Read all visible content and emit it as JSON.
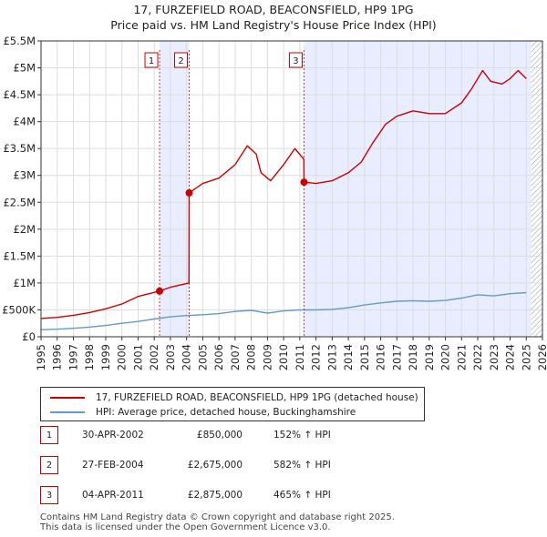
{
  "title_line1": "17, FURZEFIELD ROAD, BEACONSFIELD, HP9 1PG",
  "title_line2": "Price paid vs. HM Land Registry's House Price Index (HPI)",
  "chart_data": {
    "type": "line",
    "xlim": [
      1995,
      2026
    ],
    "ylim": [
      0,
      5500000
    ],
    "x_ticks": [
      "1995",
      "1996",
      "1997",
      "1998",
      "1999",
      "2000",
      "2001",
      "2002",
      "2003",
      "2004",
      "2005",
      "2006",
      "2007",
      "2008",
      "2009",
      "2010",
      "2011",
      "2012",
      "2013",
      "2014",
      "2015",
      "2016",
      "2017",
      "2018",
      "2019",
      "2020",
      "2021",
      "2022",
      "2023",
      "2024",
      "2025",
      "2026"
    ],
    "y_ticks": [
      {
        "value": 0,
        "label": "£0"
      },
      {
        "value": 500000,
        "label": "£500K"
      },
      {
        "value": 1000000,
        "label": "£1M"
      },
      {
        "value": 1500000,
        "label": "£1.5M"
      },
      {
        "value": 2000000,
        "label": "£2M"
      },
      {
        "value": 2500000,
        "label": "£2.5M"
      },
      {
        "value": 3000000,
        "label": "£3M"
      },
      {
        "value": 3500000,
        "label": "£3.5M"
      },
      {
        "value": 4000000,
        "label": "£4M"
      },
      {
        "value": 4500000,
        "label": "£4.5M"
      },
      {
        "value": 5000000,
        "label": "£5M"
      },
      {
        "value": 5500000,
        "label": "£5.5M"
      }
    ],
    "shaded_regions": [
      [
        2002.33,
        2004.16
      ],
      [
        2011.26,
        2025.3
      ]
    ],
    "hatched_region": [
      2025.3,
      2026
    ],
    "series": [
      {
        "name": "17, FURZEFIELD ROAD, BEACONSFIELD, HP9 1PG (detached house)",
        "color": "#cc0000",
        "points": [
          [
            1995,
            340000
          ],
          [
            1996,
            360000
          ],
          [
            1997,
            400000
          ],
          [
            1998,
            450000
          ],
          [
            1999,
            520000
          ],
          [
            2000,
            610000
          ],
          [
            2001,
            750000
          ],
          [
            2002.33,
            850000
          ],
          [
            2003,
            920000
          ],
          [
            2004.15,
            1000000
          ],
          [
            2004.16,
            2675000
          ],
          [
            2005,
            2850000
          ],
          [
            2006,
            2950000
          ],
          [
            2007,
            3200000
          ],
          [
            2007.75,
            3550000
          ],
          [
            2008.3,
            3400000
          ],
          [
            2008.6,
            3050000
          ],
          [
            2009.2,
            2900000
          ],
          [
            2010,
            3200000
          ],
          [
            2010.7,
            3500000
          ],
          [
            2011.25,
            3300000
          ],
          [
            2011.26,
            2875000
          ],
          [
            2012,
            2850000
          ],
          [
            2013,
            2900000
          ],
          [
            2014,
            3050000
          ],
          [
            2014.8,
            3250000
          ],
          [
            2015.5,
            3600000
          ],
          [
            2016.3,
            3950000
          ],
          [
            2017,
            4100000
          ],
          [
            2018,
            4200000
          ],
          [
            2019,
            4150000
          ],
          [
            2020,
            4150000
          ],
          [
            2021,
            4350000
          ],
          [
            2021.6,
            4600000
          ],
          [
            2022.3,
            4950000
          ],
          [
            2022.8,
            4750000
          ],
          [
            2023.5,
            4700000
          ],
          [
            2024,
            4800000
          ],
          [
            2024.5,
            4950000
          ],
          [
            2025,
            4800000
          ]
        ]
      },
      {
        "name": "HPI: Average price, detached house, Buckinghamshire",
        "color": "#6699cc",
        "points": [
          [
            1995,
            130000
          ],
          [
            1996,
            140000
          ],
          [
            1997,
            158000
          ],
          [
            1998,
            180000
          ],
          [
            1999,
            210000
          ],
          [
            2000,
            250000
          ],
          [
            2001,
            285000
          ],
          [
            2002,
            330000
          ],
          [
            2003,
            370000
          ],
          [
            2004,
            395000
          ],
          [
            2005,
            410000
          ],
          [
            2006,
            430000
          ],
          [
            2007,
            470000
          ],
          [
            2008,
            490000
          ],
          [
            2009,
            440000
          ],
          [
            2010,
            480000
          ],
          [
            2011,
            500000
          ],
          [
            2012,
            500000
          ],
          [
            2013,
            510000
          ],
          [
            2014,
            540000
          ],
          [
            2015,
            590000
          ],
          [
            2016,
            630000
          ],
          [
            2017,
            660000
          ],
          [
            2018,
            670000
          ],
          [
            2019,
            660000
          ],
          [
            2020,
            675000
          ],
          [
            2021,
            720000
          ],
          [
            2022,
            780000
          ],
          [
            2023,
            760000
          ],
          [
            2024,
            800000
          ],
          [
            2025,
            820000
          ]
        ]
      }
    ],
    "markers": [
      {
        "label": "1",
        "x": 2002.33,
        "y": 850000
      },
      {
        "label": "2",
        "x": 2004.16,
        "y": 2675000
      },
      {
        "label": "3",
        "x": 2011.26,
        "y": 2875000
      }
    ]
  },
  "legend": {
    "property": "17, FURZEFIELD ROAD, BEACONSFIELD, HP9 1PG (detached house)",
    "hpi": "HPI: Average price, detached house, Buckinghamshire"
  },
  "transactions": [
    {
      "num": "1",
      "date": "30-APR-2002",
      "price": "£850,000",
      "hpi": "152% ↑ HPI"
    },
    {
      "num": "2",
      "date": "27-FEB-2004",
      "price": "£2,675,000",
      "hpi": "582% ↑ HPI"
    },
    {
      "num": "3",
      "date": "04-APR-2011",
      "price": "£2,875,000",
      "hpi": "465% ↑ HPI"
    }
  ],
  "footer": {
    "line1": "Contains HM Land Registry data © Crown copyright and database right 2025.",
    "line2": "This data is licensed under the Open Government Licence v3.0."
  },
  "colors": {
    "property": "#cc0000",
    "hpi": "#6699cc",
    "shade": "#e8eeff"
  }
}
